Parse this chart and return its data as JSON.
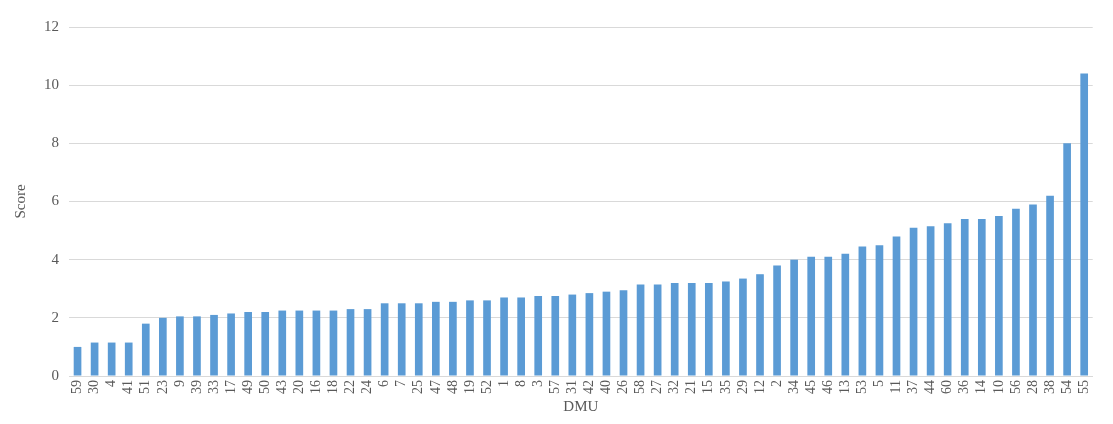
{
  "chart_data": {
    "type": "bar",
    "xlabel": "DMU",
    "ylabel": "Score",
    "categories": [
      "59",
      "30",
      "4",
      "41",
      "51",
      "23",
      "9",
      "39",
      "33",
      "17",
      "49",
      "50",
      "43",
      "20",
      "16",
      "18",
      "22",
      "24",
      "6",
      "7",
      "25",
      "47",
      "48",
      "19",
      "52",
      "1",
      "8",
      "3",
      "57",
      "31",
      "42",
      "40",
      "26",
      "58",
      "27",
      "32",
      "21",
      "15",
      "35",
      "29",
      "12",
      "2",
      "34",
      "45",
      "46",
      "13",
      "53",
      "5",
      "11",
      "37",
      "44",
      "60",
      "36",
      "14",
      "10",
      "56",
      "28",
      "38",
      "54",
      "55"
    ],
    "values": [
      1.0,
      1.15,
      1.15,
      1.15,
      1.8,
      2.0,
      2.05,
      2.05,
      2.1,
      2.15,
      2.2,
      2.2,
      2.25,
      2.25,
      2.25,
      2.25,
      2.3,
      2.3,
      2.5,
      2.5,
      2.5,
      2.55,
      2.55,
      2.6,
      2.6,
      2.7,
      2.7,
      2.75,
      2.75,
      2.8,
      2.85,
      2.9,
      2.95,
      3.15,
      3.15,
      3.2,
      3.2,
      3.2,
      3.25,
      3.35,
      3.5,
      3.8,
      4.0,
      4.1,
      4.1,
      4.2,
      4.45,
      4.5,
      4.8,
      5.1,
      5.15,
      5.25,
      5.4,
      5.4,
      5.5,
      5.75,
      5.9,
      6.2,
      8.0,
      10.4
    ],
    "color": "#5b9bd5",
    "ylim": [
      0,
      12
    ],
    "yticks": [
      0,
      2,
      4,
      6,
      8,
      10,
      12
    ],
    "grid": "y",
    "legend": false
  }
}
